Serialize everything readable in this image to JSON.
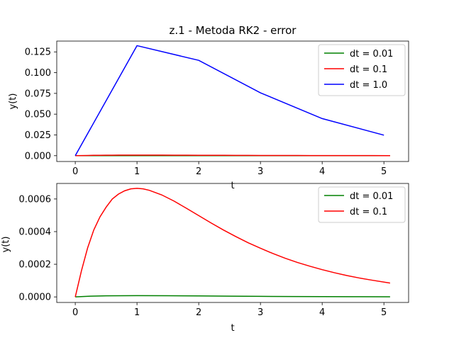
{
  "chart_data": [
    {
      "type": "line",
      "title": "z.1 - Metoda RK2 - error",
      "xlabel": "t",
      "ylabel": "y(t)",
      "xlim": [
        -0.3,
        5.4
      ],
      "ylim": [
        -0.007,
        0.138
      ],
      "xticks": [
        0,
        1,
        2,
        3,
        4,
        5
      ],
      "xtick_labels": [
        "0",
        "1",
        "2",
        "3",
        "4",
        "5"
      ],
      "yticks": [
        0.0,
        0.025,
        0.05,
        0.075,
        0.1,
        0.125
      ],
      "ytick_labels": [
        "0.000",
        "0.025",
        "0.050",
        "0.075",
        "0.100",
        "0.125"
      ],
      "grid": false,
      "legend_position": "top-right",
      "series": [
        {
          "name": "dt = 0.01",
          "color": "#008000",
          "x": [
            0,
            0.25,
            0.5,
            0.75,
            1.0,
            1.5,
            2.0,
            2.5,
            3.0,
            3.5,
            4.0,
            4.5,
            5.1
          ],
          "y": [
            0,
            5e-06,
            7e-06,
            8e-06,
            8e-06,
            7e-06,
            6e-06,
            4e-06,
            3e-06,
            2e-06,
            2e-06,
            1e-06,
            1e-06
          ]
        },
        {
          "name": "dt = 0.1",
          "color": "#ff0000",
          "x": [
            0,
            0.1,
            0.2,
            0.3,
            0.4,
            0.5,
            0.6,
            0.7,
            0.8,
            0.9,
            1.0,
            1.1,
            1.2,
            1.4,
            1.6,
            1.8,
            2.0,
            2.2,
            2.4,
            2.6,
            2.8,
            3.0,
            3.2,
            3.4,
            3.6,
            3.8,
            4.0,
            4.2,
            4.4,
            4.6,
            4.8,
            5.1
          ],
          "y": [
            0,
            0.00016,
            0.0003,
            0.00041,
            0.00049,
            0.00055,
            0.0006,
            0.00063,
            0.00065,
            0.000662,
            0.000665,
            0.000662,
            0.000653,
            0.000625,
            0.000587,
            0.000543,
            0.000498,
            0.000453,
            0.00041,
            0.00037,
            0.000332,
            0.000298,
            0.000266,
            0.000237,
            0.000211,
            0.000188,
            0.000167,
            0.000148,
            0.000131,
            0.000116,
            0.000103,
            8.5e-05
          ]
        },
        {
          "name": "dt = 1.0",
          "color": "#0000ff",
          "x": [
            0,
            1,
            2,
            3,
            4,
            5
          ],
          "y": [
            0,
            0.1325,
            0.1148,
            0.0757,
            0.0447,
            0.0247
          ]
        }
      ]
    },
    {
      "type": "line",
      "title": "",
      "xlabel": "t",
      "ylabel": "y(t)",
      "xlim": [
        -0.3,
        5.4
      ],
      "ylim": [
        -3.4e-05,
        0.000695
      ],
      "xticks": [
        0,
        1,
        2,
        3,
        4,
        5
      ],
      "xtick_labels": [
        "0",
        "1",
        "2",
        "3",
        "4",
        "5"
      ],
      "yticks": [
        0.0,
        0.0002,
        0.0004,
        0.0006
      ],
      "ytick_labels": [
        "0.0000",
        "0.0002",
        "0.0004",
        "0.0006"
      ],
      "grid": false,
      "legend_position": "top-right",
      "series": [
        {
          "name": "dt = 0.01",
          "color": "#008000",
          "x": [
            0,
            0.25,
            0.5,
            0.75,
            1.0,
            1.5,
            2.0,
            2.5,
            3.0,
            3.5,
            4.0,
            4.5,
            5.1
          ],
          "y": [
            0,
            4.5e-06,
            6.5e-06,
            7.5e-06,
            7.8e-06,
            7.2e-06,
            6e-06,
            4.6e-06,
            3.4e-06,
            2.4e-06,
            1.7e-06,
            1.2e-06,
            8e-07
          ]
        },
        {
          "name": "dt = 0.1",
          "color": "#ff0000",
          "x": [
            0,
            0.1,
            0.2,
            0.3,
            0.4,
            0.5,
            0.6,
            0.7,
            0.8,
            0.9,
            1.0,
            1.1,
            1.2,
            1.4,
            1.6,
            1.8,
            2.0,
            2.2,
            2.4,
            2.6,
            2.8,
            3.0,
            3.2,
            3.4,
            3.6,
            3.8,
            4.0,
            4.2,
            4.4,
            4.6,
            4.8,
            5.1
          ],
          "y": [
            0,
            0.00016,
            0.0003,
            0.00041,
            0.00049,
            0.00055,
            0.0006,
            0.00063,
            0.00065,
            0.000662,
            0.000665,
            0.000662,
            0.000653,
            0.000625,
            0.000587,
            0.000543,
            0.000498,
            0.000453,
            0.00041,
            0.00037,
            0.000332,
            0.000298,
            0.000266,
            0.000237,
            0.000211,
            0.000188,
            0.000167,
            0.000148,
            0.000131,
            0.000116,
            0.000103,
            8.5e-05
          ]
        }
      ]
    }
  ]
}
